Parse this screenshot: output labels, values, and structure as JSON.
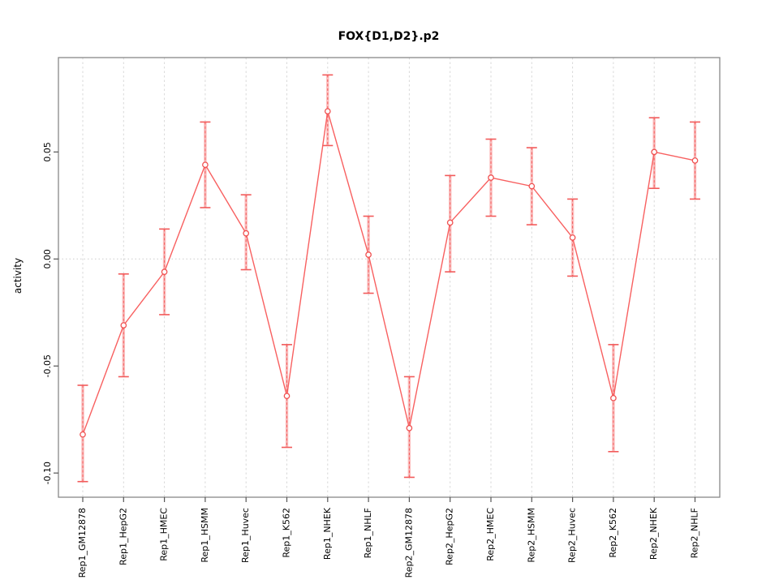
{
  "figure": {
    "background": "#ffffff"
  },
  "chart_data": {
    "type": "line",
    "title": "FOX{D1,D2}.p2",
    "xlabel": "",
    "ylabel": "activity",
    "legend": "none",
    "grid": {
      "vertical_dashed_per_category": true,
      "zero_line_dotted": true
    },
    "categories": [
      "Rep1_GM12878",
      "Rep1_HepG2",
      "Rep1_HMEC",
      "Rep1_HSMM",
      "Rep1_Huvec",
      "Rep1_K562",
      "Rep1_NHEK",
      "Rep1_NHLF",
      "Rep2_GM12878",
      "Rep2_HepG2",
      "Rep2_HMEC",
      "Rep2_HSMM",
      "Rep2_Huvec",
      "Rep2_K562",
      "Rep2_NHEK",
      "Rep2_NHLF"
    ],
    "series": [
      {
        "name": "activity",
        "values": [
          -0.082,
          -0.031,
          -0.006,
          0.044,
          0.012,
          -0.064,
          0.069,
          0.002,
          -0.079,
          0.017,
          0.038,
          0.034,
          0.01,
          -0.065,
          0.05,
          0.046
        ],
        "ci_low": [
          -0.104,
          -0.055,
          -0.026,
          0.024,
          -0.005,
          -0.088,
          0.053,
          -0.016,
          -0.102,
          -0.006,
          0.02,
          0.016,
          -0.008,
          -0.09,
          0.033,
          0.028
        ],
        "ci_high": [
          -0.059,
          -0.007,
          0.014,
          0.064,
          0.03,
          -0.04,
          0.086,
          0.02,
          -0.055,
          0.039,
          0.056,
          0.052,
          0.028,
          -0.04,
          0.066,
          0.064
        ]
      }
    ],
    "yticks": [
      0.05,
      0.0,
      -0.05,
      -0.1
    ],
    "ytick_labels": [
      "0.05",
      "0.00",
      "-0.05",
      "-0.10"
    ],
    "ylim": [
      -0.1113,
      0.0941
    ],
    "colors": {
      "line": "#f86060",
      "marker": "#f05050",
      "error_bar": "#f25a5a",
      "error_bar_fill": "rgba(250,115,115,0.45)",
      "grid": "#d9d9d9",
      "zero_line": "#cccccc",
      "axis": "#555555",
      "box": "#888888",
      "text": "#000000"
    }
  }
}
